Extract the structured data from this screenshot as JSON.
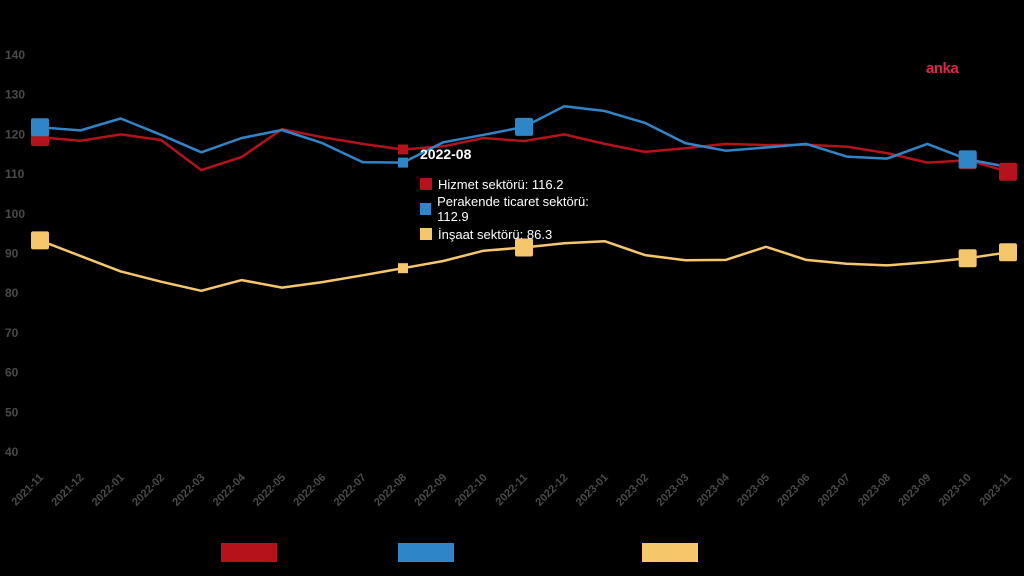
{
  "brand": "anka",
  "tooltip": {
    "title": "2022-08",
    "rows": [
      {
        "label": "Hizmet sektörü: 116.2",
        "color": "#b5121b"
      },
      {
        "label": "Perakende ticaret sektörü: 112.9",
        "color": "#2e86c9"
      },
      {
        "label": "İnşaat sektörü: 86.3",
        "color": "#f5c76a"
      }
    ]
  },
  "chart_data": {
    "type": "line",
    "x": [
      "2021-11",
      "2021-12",
      "2022-01",
      "2022-02",
      "2022-03",
      "2022-04",
      "2022-05",
      "2022-06",
      "2022-07",
      "2022-08",
      "2022-09",
      "2022-10",
      "2022-11",
      "2022-12",
      "2023-01",
      "2023-02",
      "2023-03",
      "2023-04",
      "2023-05",
      "2023-06",
      "2023-07",
      "2023-08",
      "2023-09",
      "2023-10",
      "2023-11"
    ],
    "ylim": [
      40,
      140
    ],
    "yticks": [
      40,
      50,
      60,
      70,
      80,
      90,
      100,
      110,
      120,
      130,
      140
    ],
    "series": [
      {
        "name": "Hizmet sektörü",
        "color": "#b5121b",
        "values": [
          119.3,
          118.4,
          120.0,
          118.6,
          111.0,
          114.3,
          121.3,
          119.3,
          117.6,
          116.2,
          117.0,
          119.1,
          118.3,
          120.0,
          117.6,
          115.6,
          116.5,
          117.6,
          117.3,
          117.4,
          116.9,
          115.3,
          112.9,
          113.5,
          110.6
        ]
      },
      {
        "name": "Perakende ticaret sektörü",
        "color": "#2e86c9",
        "values": [
          121.8,
          121.0,
          124.0,
          119.9,
          115.5,
          119.1,
          121.1,
          117.8,
          113.0,
          112.9,
          118.0,
          119.9,
          121.9,
          127.1,
          125.9,
          122.9,
          117.8,
          115.9,
          116.7,
          117.6,
          114.4,
          113.9,
          117.6,
          113.7,
          111.8
        ]
      },
      {
        "name": "İnşaat sektörü",
        "color": "#f5c76a",
        "values": [
          93.3,
          89.4,
          85.5,
          82.9,
          80.6,
          83.3,
          81.4,
          82.8,
          84.5,
          86.3,
          88.1,
          90.7,
          91.5,
          92.6,
          93.1,
          89.6,
          88.3,
          88.4,
          91.7,
          88.4,
          87.4,
          87.0,
          87.8,
          88.8,
          90.3
        ]
      }
    ],
    "highlighted": {
      "Hizmet sektörü": [
        0,
        23,
        24
      ],
      "Perakende ticaret sektörü": [
        0,
        12,
        23
      ],
      "İnşaat sektörü": [
        0,
        12,
        23,
        24
      ]
    },
    "hover_index": 9,
    "legend": {
      "position": "bottom",
      "colors": [
        "#b5121b",
        "#2e86c9",
        "#f5c76a"
      ]
    },
    "grid": false
  }
}
